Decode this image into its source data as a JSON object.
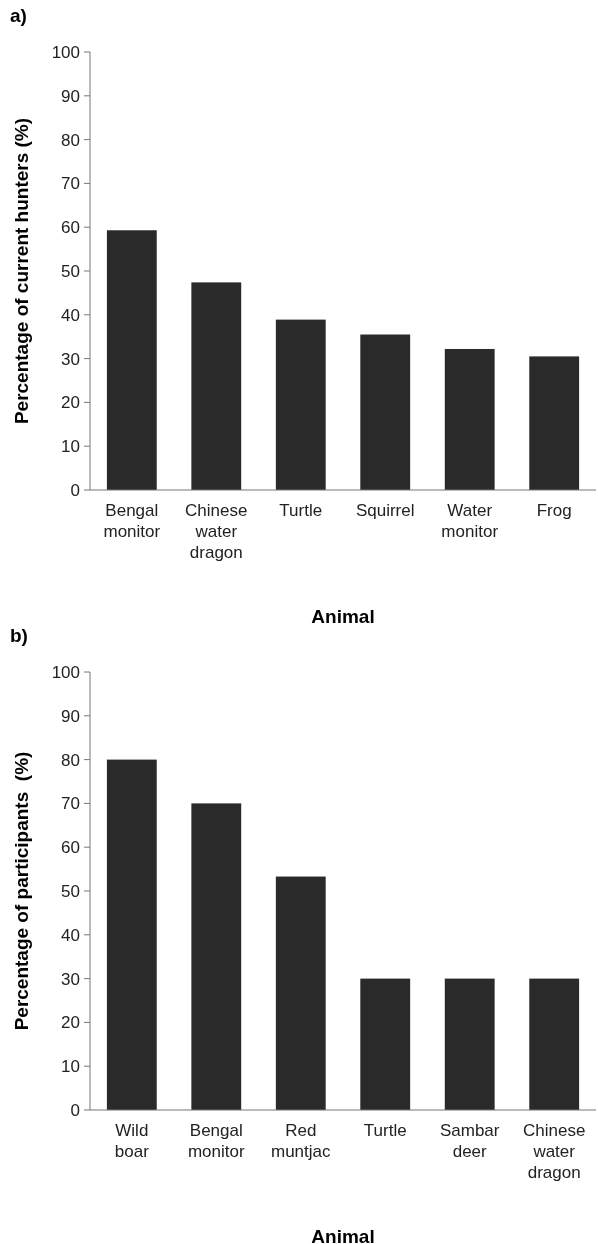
{
  "chart_data": [
    {
      "type": "bar",
      "title": "a)",
      "xlabel": "Animal",
      "ylabel": "Percentage of current hunters (%)",
      "categories": [
        "Bengal monitor",
        "Chinese water dragon",
        "Turtle",
        "Squirrel",
        "Water monitor",
        "Frog"
      ],
      "values": [
        59.3,
        47.4,
        38.9,
        35.5,
        32.2,
        30.5
      ],
      "color": "#2a2a2a",
      "ylim": [
        0,
        100
      ],
      "yticks": [
        0,
        10,
        20,
        30,
        40,
        50,
        60,
        70,
        80,
        90,
        100
      ]
    },
    {
      "type": "bar",
      "title": "b)",
      "xlabel": "Animal",
      "ylabel": "Percentage of participants  (%)",
      "categories": [
        "Wild boar",
        "Bengal monitor",
        "Red muntjac",
        "Turtle",
        "Sambar deer",
        "Chinese water dragon"
      ],
      "values": [
        80,
        70,
        53.3,
        30,
        30,
        30
      ],
      "color": "#2a2a2a",
      "ylim": [
        0,
        100
      ],
      "yticks": [
        0,
        10,
        20,
        30,
        40,
        50,
        60,
        70,
        80,
        90,
        100
      ]
    }
  ]
}
